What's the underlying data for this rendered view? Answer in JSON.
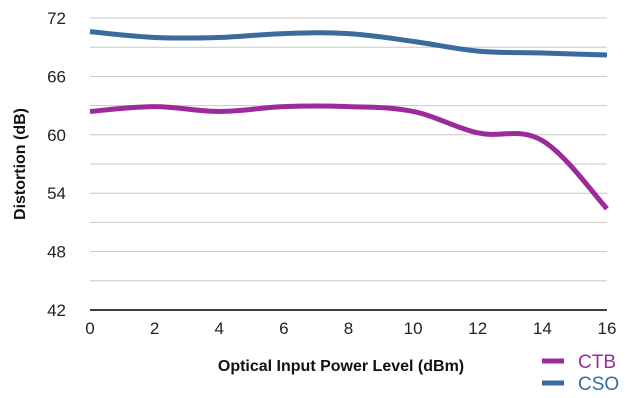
{
  "chart_data": {
    "type": "line",
    "title": "",
    "xlabel": "Optical Input Power Level (dBm)",
    "ylabel": "Distortion (dB)",
    "x": [
      0,
      2,
      4,
      6,
      8,
      10,
      12,
      14,
      16
    ],
    "xticks": [
      "0",
      "2",
      "4",
      "6",
      "8",
      "10",
      "12",
      "14",
      "16"
    ],
    "yticks": [
      "42",
      "48",
      "54",
      "60",
      "66",
      "72"
    ],
    "xlim": [
      0,
      16
    ],
    "ylim": [
      42,
      72
    ],
    "grid": true,
    "legend_position": "bottom-right",
    "series": [
      {
        "name": "CTB",
        "color": "#9b2a9b",
        "values": [
          62.4,
          62.9,
          62.4,
          62.9,
          62.9,
          62.4,
          60.2,
          59.4,
          52.4
        ]
      },
      {
        "name": "CSO",
        "color": "#3a6a9e",
        "values": [
          70.6,
          70.0,
          70.0,
          70.4,
          70.4,
          69.6,
          68.6,
          68.4,
          68.2
        ]
      }
    ]
  }
}
